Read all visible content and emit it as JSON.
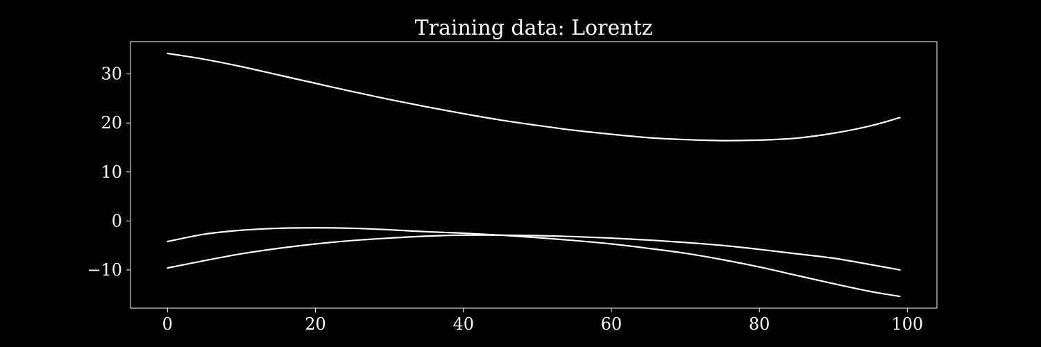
{
  "chart_data": {
    "type": "line",
    "title": "Training data: Lorentz",
    "xlabel": "",
    "ylabel": "",
    "xlim": [
      -5,
      104
    ],
    "ylim": [
      -17.8,
      36.6
    ],
    "xticks": [
      0,
      20,
      40,
      60,
      80,
      100
    ],
    "yticks": [
      -10,
      0,
      10,
      20,
      30
    ],
    "xtick_labels": [
      "0",
      "20",
      "40",
      "60",
      "80",
      "100"
    ],
    "ytick_labels": [
      "−10",
      "0",
      "10",
      "20",
      "30"
    ],
    "grid": false,
    "legend": "none",
    "background_color": "#000000",
    "line_color": "#ffffff",
    "series": [
      {
        "x": [
          0,
          5,
          10,
          15,
          20,
          25,
          30,
          35,
          40,
          45,
          50,
          55,
          60,
          65,
          70,
          75,
          80,
          85,
          90,
          95,
          99
        ],
        "values": [
          34.2,
          33.0,
          31.5,
          29.8,
          28.1,
          26.4,
          24.8,
          23.3,
          21.9,
          20.6,
          19.5,
          18.5,
          17.7,
          17.0,
          16.6,
          16.4,
          16.5,
          16.9,
          17.9,
          19.4,
          21.1
        ]
      },
      {
        "x": [
          0,
          5,
          10,
          15,
          20,
          25,
          30,
          35,
          40,
          45,
          50,
          55,
          60,
          65,
          70,
          75,
          80,
          85,
          90,
          95,
          99
        ],
        "values": [
          -4.2,
          -2.7,
          -1.9,
          -1.5,
          -1.4,
          -1.5,
          -1.8,
          -2.2,
          -2.5,
          -2.9,
          -3.4,
          -4.0,
          -4.7,
          -5.6,
          -6.6,
          -7.9,
          -9.4,
          -11.1,
          -12.8,
          -14.4,
          -15.4
        ]
      },
      {
        "x": [
          0,
          5,
          10,
          15,
          20,
          25,
          30,
          35,
          40,
          45,
          50,
          55,
          60,
          65,
          70,
          75,
          80,
          85,
          90,
          95,
          99
        ],
        "values": [
          -9.6,
          -8.1,
          -6.7,
          -5.6,
          -4.7,
          -4.0,
          -3.5,
          -3.1,
          -2.9,
          -2.9,
          -3.0,
          -3.2,
          -3.5,
          -3.9,
          -4.4,
          -5.0,
          -5.8,
          -6.7,
          -7.6,
          -8.9,
          -10.0
        ]
      }
    ]
  }
}
